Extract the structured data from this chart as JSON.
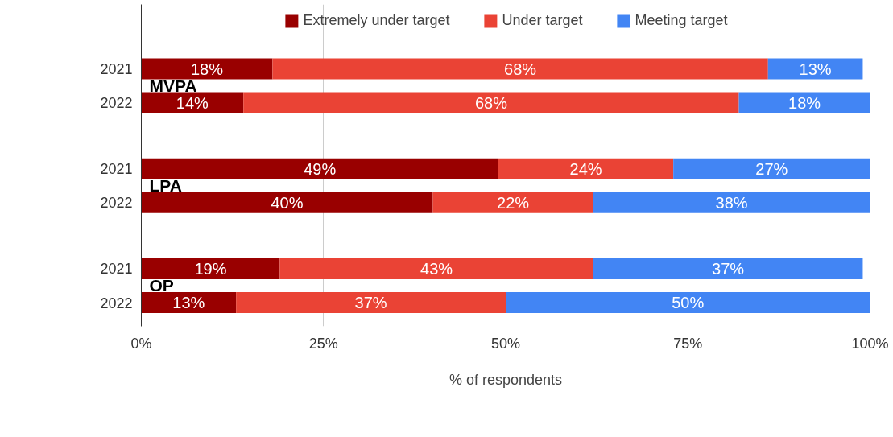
{
  "chart_data": {
    "type": "bar",
    "orientation": "horizontal",
    "stacked": true,
    "xlabel": "% of respondents",
    "categories": [
      "2021",
      "2022",
      "2021",
      "2022",
      "2021",
      "2022"
    ],
    "series": [
      {
        "name": "Extremely under target",
        "color": "#990000",
        "values": [
          18,
          14,
          49,
          40,
          19,
          13
        ]
      },
      {
        "name": "Under target",
        "color": "#ea4335",
        "values": [
          68,
          68,
          24,
          22,
          43,
          37
        ]
      },
      {
        "name": "Meeting target",
        "color": "#4285f4",
        "values": [
          13,
          18,
          27,
          38,
          37,
          50
        ]
      }
    ],
    "xlim": [
      0,
      100
    ],
    "xticks": [
      {
        "value": 0,
        "label": "0%"
      },
      {
        "value": 25,
        "label": "25%"
      },
      {
        "value": 50,
        "label": "50%"
      },
      {
        "value": 75,
        "label": "75%"
      },
      {
        "value": 100,
        "label": "100%"
      }
    ],
    "value_labels": [
      [
        "18%",
        "14%",
        "49%",
        "40%",
        "19%",
        "13%"
      ],
      [
        "68%",
        "68%",
        "24%",
        "22%",
        "43%",
        "37%"
      ],
      [
        "13%",
        "18%",
        "27%",
        "38%",
        "37%",
        "50%"
      ]
    ],
    "annotations": [
      "MVPA",
      "LPA",
      "OP"
    ],
    "grid": "x",
    "legend": "top"
  }
}
